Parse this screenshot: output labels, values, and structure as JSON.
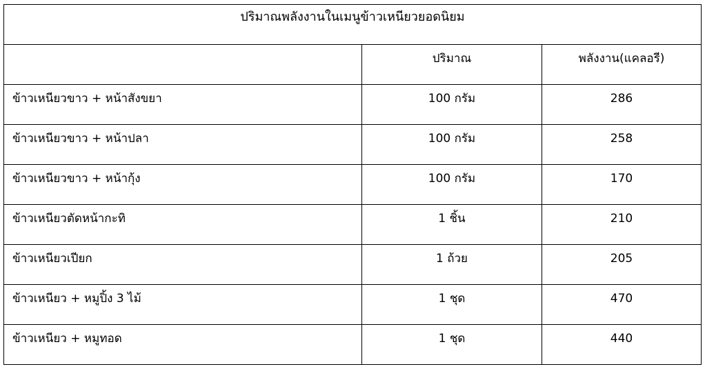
{
  "table": {
    "title": "ปริมาณพลังงานในเมนูข้าวเหนียวยอดนิยม",
    "headers": [
      "",
      "ปริมาณ",
      "พลังงาน(แคลอรี)"
    ],
    "rows": [
      {
        "menu": "ข้าวเหนียวขาว + หน้าสังขยา",
        "amount": "100 กรัม",
        "calories": "286"
      },
      {
        "menu": "ข้าวเหนียวขาว  + หน้าปลา",
        "amount": "100 กรัม",
        "calories": "258"
      },
      {
        "menu": "ข้าวเหนียวขาว + หน้ากุ้ง",
        "amount": "100 กรัม",
        "calories": "170"
      },
      {
        "menu": "ข้าวเหนียวตัดหน้ากะทิ",
        "amount": "1 ชิ้น",
        "calories": "210"
      },
      {
        "menu": "ข้าวเหนียวเปียก",
        "amount": "1 ถ้วย",
        "calories": "205"
      },
      {
        "menu": "ข้าวเหนียว + หมูปิ้ง 3 ไม้",
        "amount": "1 ชุด",
        "calories": "470"
      },
      {
        "menu": "ข้าวเหนียว + หมูทอด",
        "amount": "1 ชุด",
        "calories": "440"
      }
    ]
  }
}
